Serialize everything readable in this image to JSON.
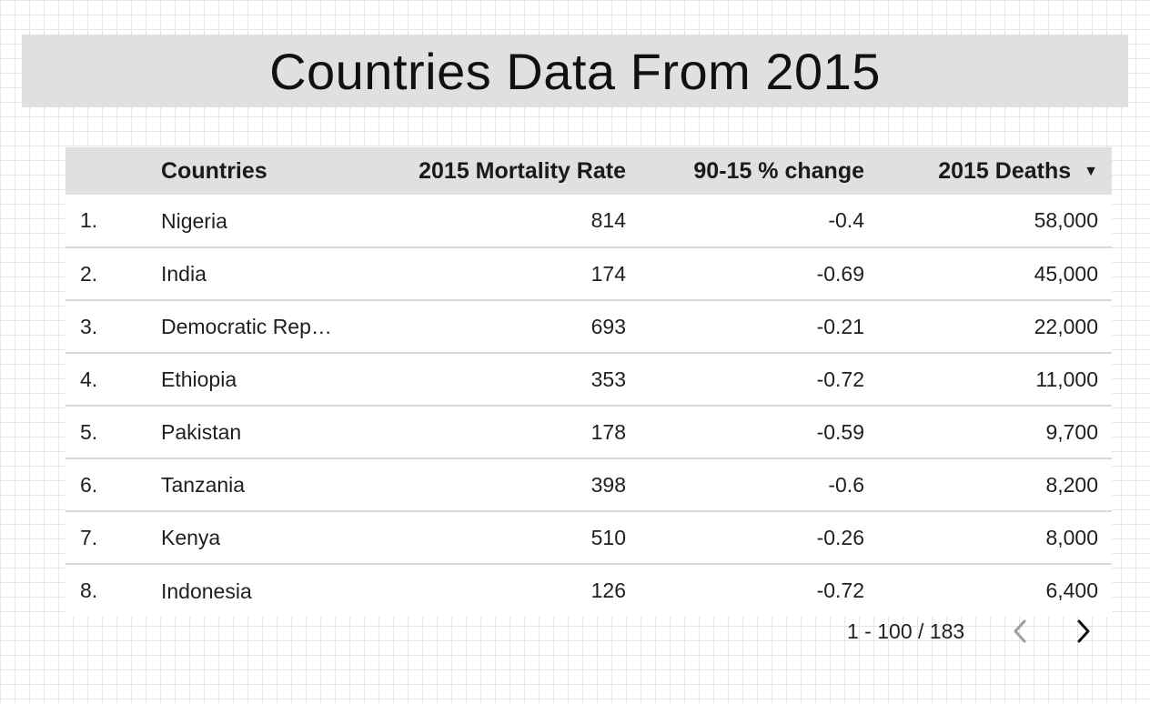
{
  "title": "Countries Data From 2015",
  "table": {
    "headers": {
      "index": "",
      "country": "Countries",
      "rate": "2015 Mortality Rate",
      "change": "90-15 % change",
      "deaths": "2015 Deaths"
    },
    "sort_indicator": "▼",
    "rows": [
      {
        "index": "1.",
        "country": "Nigeria",
        "rate": "814",
        "change": "-0.4",
        "deaths": "58,000"
      },
      {
        "index": "2.",
        "country": "India",
        "rate": "174",
        "change": "-0.69",
        "deaths": "45,000"
      },
      {
        "index": "3.",
        "country": "Democratic Rep…",
        "rate": "693",
        "change": "-0.21",
        "deaths": "22,000"
      },
      {
        "index": "4.",
        "country": "Ethiopia",
        "rate": "353",
        "change": "-0.72",
        "deaths": "11,000"
      },
      {
        "index": "5.",
        "country": "Pakistan",
        "rate": "178",
        "change": "-0.59",
        "deaths": "9,700"
      },
      {
        "index": "6.",
        "country": "Tanzania",
        "rate": "398",
        "change": "-0.6",
        "deaths": "8,200"
      },
      {
        "index": "7.",
        "country": "Kenya",
        "rate": "510",
        "change": "-0.26",
        "deaths": "8,000"
      },
      {
        "index": "8.",
        "country": "Indonesia",
        "rate": "126",
        "change": "-0.72",
        "deaths": "6,400"
      }
    ]
  },
  "pagination": {
    "range_text": "1 - 100 / 183",
    "prev_icon": "chevron-left-icon",
    "next_icon": "chevron-right-icon"
  },
  "colors": {
    "title_bg": "#e0e0e0",
    "header_bg": "#e0e0e0",
    "row_divider": "#d9d9d9",
    "disabled_icon": "#9e9e9e",
    "active_icon": "#111111"
  }
}
